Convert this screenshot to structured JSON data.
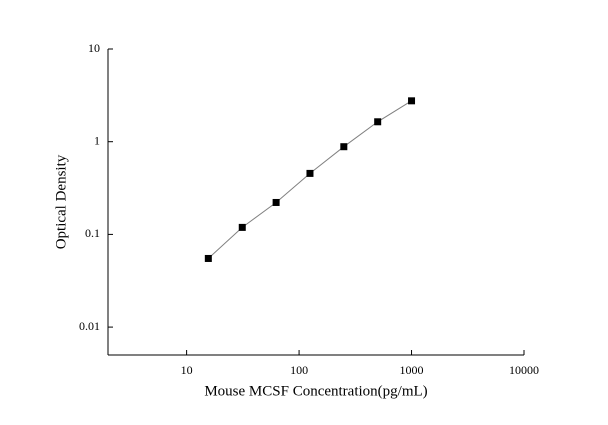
{
  "chart_data": {
    "type": "scatter",
    "x_label": "Mouse MCSF Concentration(pg/mL)",
    "y_label": "Optical Density",
    "x": [
      15.6,
      31.25,
      62.5,
      125,
      250,
      500,
      1000
    ],
    "values": [
      0.055,
      0.119,
      0.221,
      0.455,
      0.883,
      1.64,
      2.76
    ],
    "marker_color": "#000000",
    "line_color": "#808080",
    "xscale": "log",
    "yscale": "log",
    "xlim": [
      2,
      10000
    ],
    "xticks": [
      10,
      100,
      1000,
      10000
    ],
    "ylim": [
      0.005,
      10
    ],
    "yticks": [
      0.01,
      0.1,
      1,
      10
    ],
    "grid": false
  }
}
